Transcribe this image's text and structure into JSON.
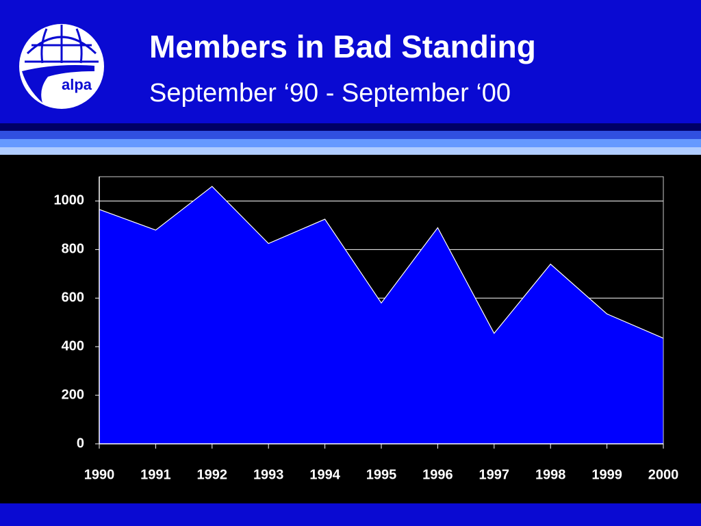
{
  "logo_text": "alpa",
  "chart_data": {
    "type": "area",
    "title": "Members in Bad Standing",
    "subtitle": "September ‘90 - September ‘00",
    "categories": [
      "1990",
      "1991",
      "1992",
      "1993",
      "1994",
      "1995",
      "1996",
      "1997",
      "1998",
      "1999",
      "2000"
    ],
    "values": [
      965,
      880,
      1060,
      825,
      925,
      580,
      890,
      455,
      740,
      535,
      435
    ],
    "color": "#0000ff",
    "ylim": [
      0,
      1100
    ],
    "yticks": [
      0,
      200,
      400,
      600,
      800,
      1000
    ],
    "grid": true
  }
}
